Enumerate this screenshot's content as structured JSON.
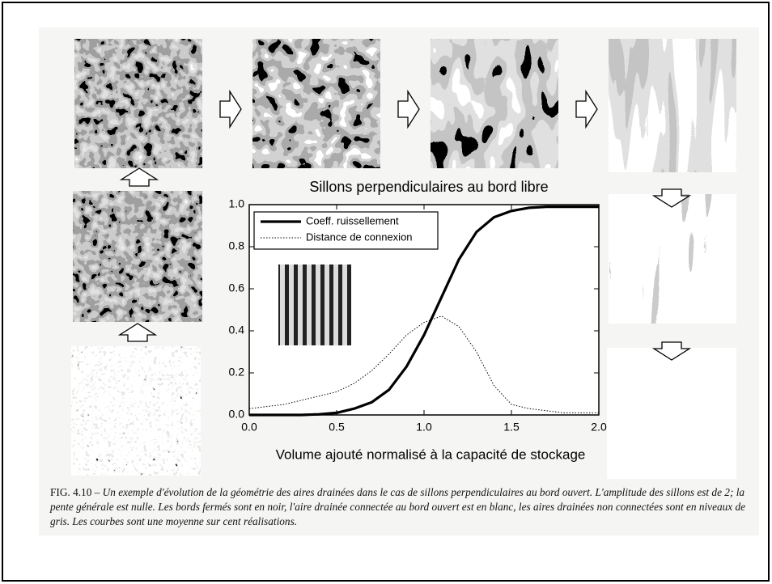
{
  "chart_data": {
    "type": "line",
    "title": "Sillons perpendiculaires au bord libre",
    "x_label": "Volume ajouté normalisé à la capacité de stockage",
    "x": [
      0,
      0.1,
      0.2,
      0.3,
      0.4,
      0.5,
      0.6,
      0.7,
      0.8,
      0.9,
      1.0,
      1.1,
      1.2,
      1.3,
      1.4,
      1.5,
      1.6,
      1.7,
      1.8,
      1.9,
      2.0
    ],
    "series": [
      {
        "name": "Coeff. ruissellement",
        "color": "#000000",
        "style": "solid",
        "values": [
          0,
          0,
          0,
          0,
          0.003,
          0.01,
          0.03,
          0.06,
          0.12,
          0.23,
          0.38,
          0.56,
          0.74,
          0.87,
          0.94,
          0.97,
          0.985,
          0.99,
          0.99,
          0.99,
          0.99
        ]
      },
      {
        "name": "Distance de connexion",
        "color": "#000000",
        "style": "dotted",
        "values": [
          0.03,
          0.04,
          0.05,
          0.07,
          0.09,
          0.11,
          0.15,
          0.21,
          0.29,
          0.38,
          0.44,
          0.47,
          0.42,
          0.3,
          0.14,
          0.05,
          0.03,
          0.02,
          0.01,
          0.01,
          0.01
        ]
      }
    ],
    "xlim": [
      0,
      2
    ],
    "ylim": [
      0,
      1
    ],
    "xticks": [
      {
        "value": 0,
        "label": "0.0"
      },
      0.5,
      {
        "value": 1,
        "label": "1.0"
      },
      1.5,
      {
        "value": 2,
        "label": "2.0"
      }
    ],
    "yticks": [
      {
        "value": 0,
        "label": "0.0"
      },
      0.2,
      0.4,
      0.6,
      0.8,
      {
        "value": 1,
        "label": "1.0"
      }
    ],
    "legend": "upper left",
    "grid": false
  },
  "figure": {
    "label": "FIG. 4.10 –",
    "caption": "Un exemple d'évolution de la géométrie des aires drainées dans le cas de sillons perpendiculaires au bord ouvert. L'amplitude des sillons est de 2; la pente générale est nulle. Les bords fermés sont en noir, l'aire drainée connectée au bord ouvert est en blanc, les aires drainées non connectées sont en niveaux de gris. Les courbes sont une moyenne sur cent réalisations."
  }
}
